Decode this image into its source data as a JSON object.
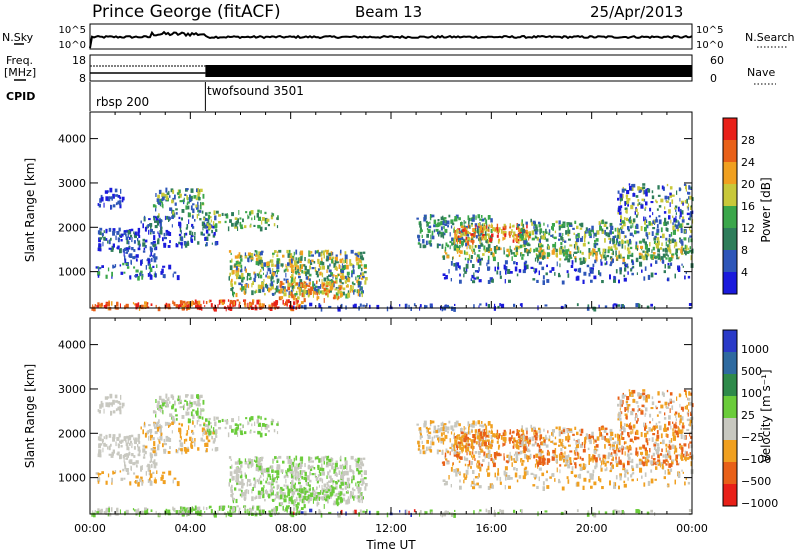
{
  "header": {
    "station": "Prince George (fitACF)",
    "beam": "Beam 13",
    "date": "25/Apr/2013"
  },
  "noise_panel": {
    "left_label": "N.Sky",
    "right_label": "N.Search",
    "ticks": [
      "10^5",
      "10^0"
    ]
  },
  "freq_panel": {
    "left_label_1": "Freq.",
    "left_label_2": "[MHz]",
    "left_ticks": [
      "18",
      "8"
    ],
    "right_label": "Nave",
    "right_ticks": [
      "60",
      "0"
    ]
  },
  "cpid": {
    "label": "CPID",
    "segments": [
      {
        "name": "rbsp 200",
        "start_hour": 0
      },
      {
        "name": "twofsound 3501",
        "start_hour": 4.6
      }
    ]
  },
  "chart_data": [
    {
      "type": "heatmap",
      "quantity": "Power",
      "colorbar_label": "Power [dB]",
      "colorbar_ticks": [
        "4",
        "8",
        "12",
        "16",
        "20",
        "24",
        "28"
      ],
      "colors": [
        "#1a1adc",
        "#2e56b8",
        "#2e7d5a",
        "#3aa64a",
        "#c8c83a",
        "#f0a020",
        "#e86018",
        "#e82018"
      ],
      "ylabel": "Slant Range [km]",
      "yticks": [
        "1000",
        "2000",
        "3000",
        "4000"
      ],
      "ylim": [
        180,
        4600
      ],
      "xlim": [
        0,
        24
      ]
    },
    {
      "type": "heatmap",
      "quantity": "Velocity",
      "colorbar_label": "Velocity [m s⁻¹]",
      "colorbar_ticks": [
        "1000",
        "500",
        "100",
        "25",
        "−25",
        "−100",
        "−500",
        "−1000"
      ],
      "colors": [
        "#2a3ac8",
        "#2e6aa0",
        "#2e8a4a",
        "#6acc3a",
        "#c8c8c0",
        "#f0a020",
        "#e86018",
        "#e82018"
      ],
      "ylabel": "Slant Range [km]",
      "yticks": [
        "1000",
        "2000",
        "3000",
        "4000"
      ],
      "ylim": [
        180,
        4600
      ],
      "xlim": [
        0,
        24
      ],
      "xlabel": "Time UT",
      "xticks": [
        "00:00",
        "04:00",
        "08:00",
        "12:00",
        "16:00",
        "20:00",
        "00:00"
      ]
    }
  ]
}
